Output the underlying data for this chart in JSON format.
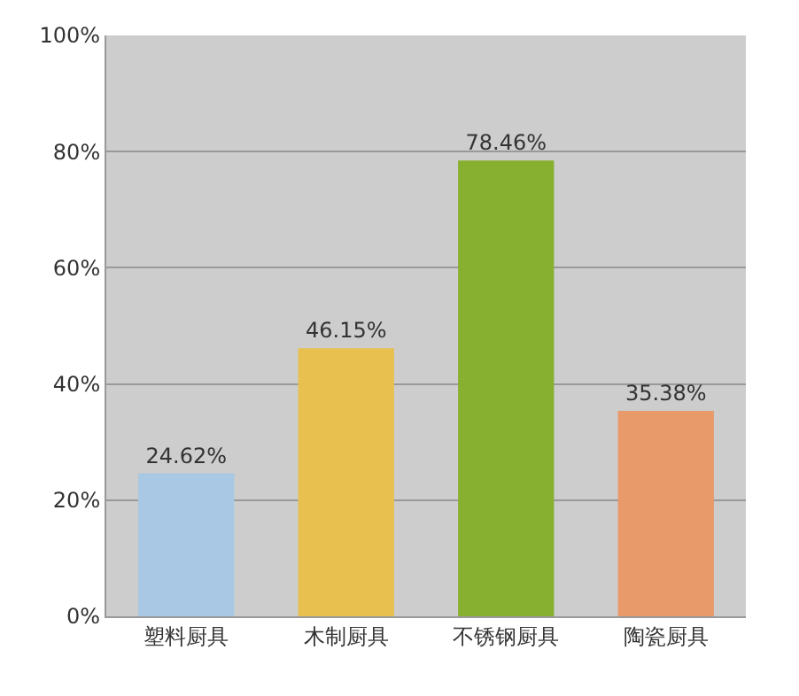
{
  "chart_data": {
    "type": "bar",
    "categories": [
      "塑料厨具",
      "木制厨具",
      "不锈钢厨具",
      "陶瓷厨具"
    ],
    "values": [
      24.62,
      46.15,
      78.46,
      35.38
    ],
    "colors": [
      "#a9c8e3",
      "#e8c050",
      "#88b030",
      "#e89a6a"
    ],
    "value_labels": [
      "24.62%",
      "46.15%",
      "78.46%",
      "35.38%"
    ],
    "ylim": [
      0,
      100
    ],
    "yticks": [
      {
        "value": 0,
        "label": "0%"
      },
      {
        "value": 20,
        "label": "20%"
      },
      {
        "value": 40,
        "label": "40%"
      },
      {
        "value": 60,
        "label": "60%"
      },
      {
        "value": 80,
        "label": "80%"
      },
      {
        "value": 100,
        "label": "100%"
      }
    ],
    "grid": "y"
  }
}
